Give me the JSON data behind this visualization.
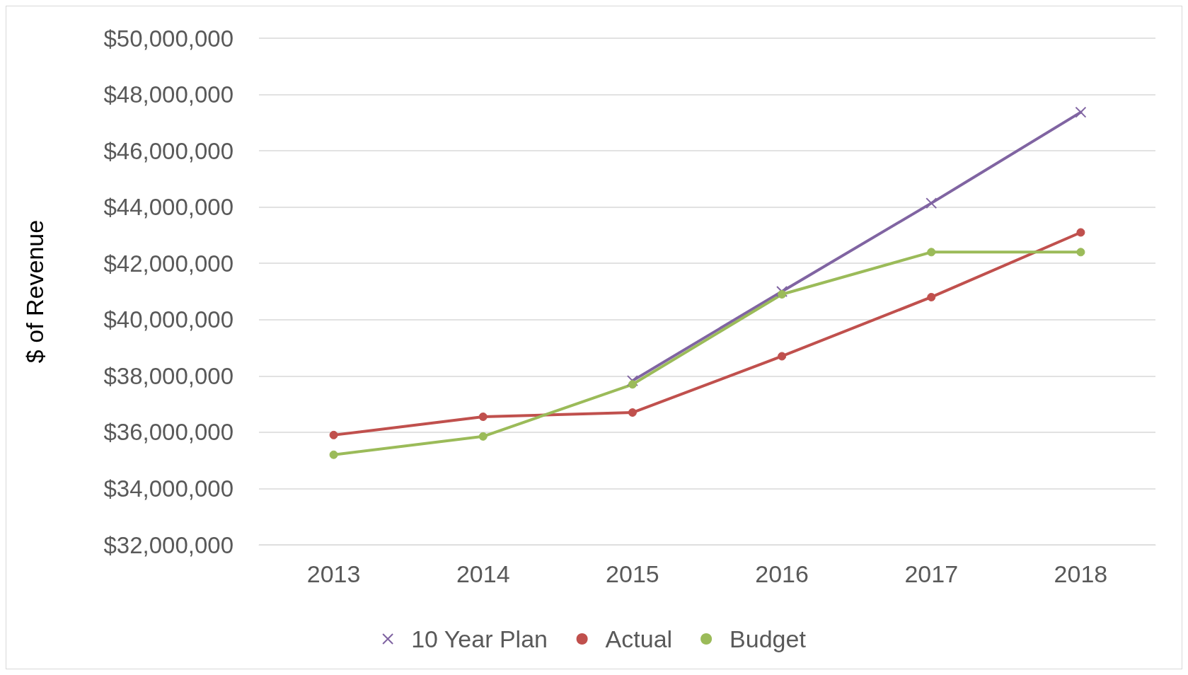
{
  "chart_data": {
    "type": "line",
    "ylabel": "$ of Revenue",
    "categories": [
      "2013",
      "2014",
      "2015",
      "2016",
      "2017",
      "2018"
    ],
    "series": [
      {
        "name": "10 Year Plan",
        "color": "#8064a2",
        "marker": "cross",
        "values": [
          null,
          null,
          37830000.0,
          41000000.0,
          44140000.0,
          47370000.0
        ]
      },
      {
        "name": "Actual",
        "color": "#c0504d",
        "marker": "circle",
        "values": [
          35900000.0,
          36550000.0,
          36700000.0,
          38700000.0,
          40800000.0,
          43100000.0
        ]
      },
      {
        "name": "Budget",
        "color": "#9bbb59",
        "marker": "circle",
        "values": [
          35200000.0,
          35850000.0,
          37700000.0,
          40900000.0,
          42400000.0,
          42400000.0
        ]
      }
    ],
    "ylim": [
      32000000,
      50000000
    ],
    "yticks": [
      {
        "value": 32000000,
        "label": "$32,000,000"
      },
      {
        "value": 34000000,
        "label": "$34,000,000"
      },
      {
        "value": 36000000,
        "label": "$36,000,000"
      },
      {
        "value": 38000000,
        "label": "$38,000,000"
      },
      {
        "value": 40000000,
        "label": "$40,000,000"
      },
      {
        "value": 42000000,
        "label": "$42,000,000"
      },
      {
        "value": 44000000,
        "label": "$44,000,000"
      },
      {
        "value": 46000000,
        "label": "$46,000,000"
      },
      {
        "value": 48000000,
        "label": "$48,000,000"
      },
      {
        "value": 50000000,
        "label": "$50,000,000"
      }
    ],
    "grid": "y",
    "legend": "bottom"
  }
}
